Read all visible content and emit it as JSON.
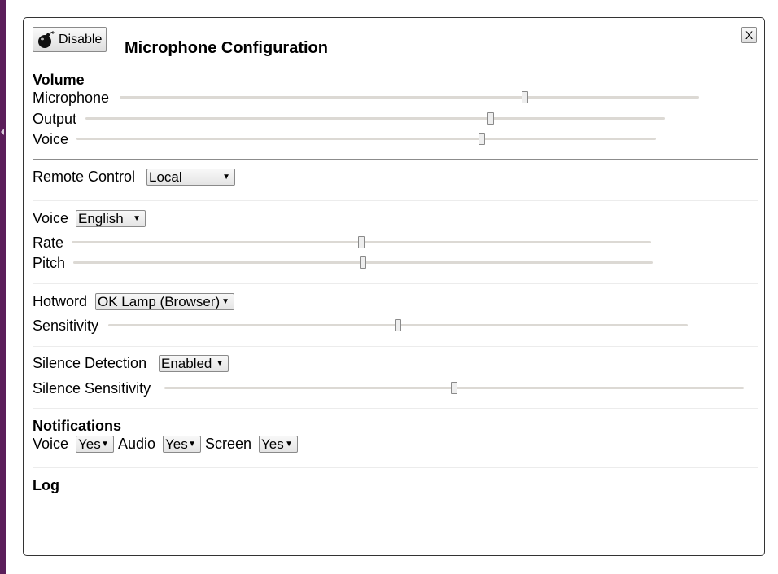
{
  "header": {
    "title": "Microphone Configuration",
    "disable_label": "Disable",
    "close_label": "X"
  },
  "volume": {
    "heading": "Volume",
    "sliders": [
      {
        "label": "Microphone",
        "value": 0.7
      },
      {
        "label": "Output",
        "value": 0.7
      },
      {
        "label": "Voice",
        "value": 0.7
      }
    ]
  },
  "remote_control": {
    "label": "Remote Control",
    "selected": "Local"
  },
  "voice_settings": {
    "voice_label": "Voice",
    "voice_selected": "English",
    "sliders": [
      {
        "label": "Rate",
        "value": 0.5
      },
      {
        "label": "Pitch",
        "value": 0.5
      }
    ]
  },
  "hotword": {
    "label": "Hotword",
    "selected": "OK Lamp (Browser)",
    "sensitivity_label": "Sensitivity",
    "sensitivity_value": 0.5
  },
  "silence": {
    "detection_label": "Silence Detection",
    "detection_selected": "Enabled",
    "sensitivity_label": "Silence Sensitivity",
    "sensitivity_value": 0.5
  },
  "notifications": {
    "heading": "Notifications",
    "items": [
      {
        "label": "Voice",
        "selected": "Yes"
      },
      {
        "label": "Audio",
        "selected": "Yes"
      },
      {
        "label": "Screen",
        "selected": "Yes"
      }
    ]
  },
  "log": {
    "heading": "Log"
  },
  "colors": {
    "sidebar_strip": "#5b1e5a",
    "slider_track": "#dcd9d4"
  }
}
